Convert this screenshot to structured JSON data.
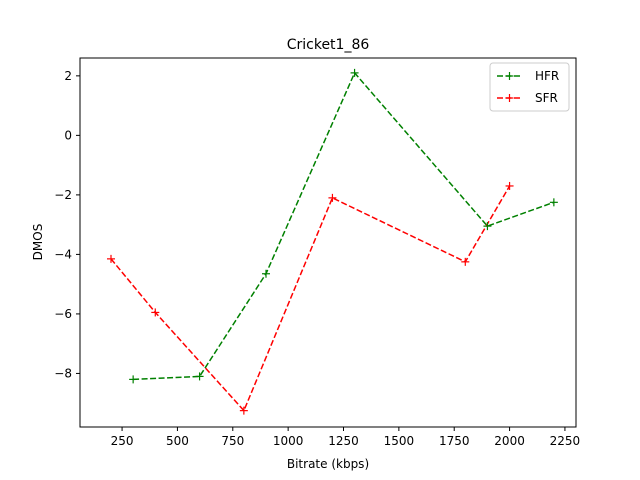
{
  "chart_data": {
    "type": "line",
    "title": "Cricket1_86",
    "xlabel": "Bitrate (kbps)",
    "ylabel": "DMOS",
    "xlim": [
      60,
      2300
    ],
    "ylim": [
      -9.8,
      2.6
    ],
    "xticks": [
      250,
      500,
      750,
      1000,
      1250,
      1500,
      1750,
      2000,
      2250
    ],
    "yticks": [
      -8,
      -6,
      -4,
      -2,
      0,
      2
    ],
    "grid": false,
    "legend_position": "top-right",
    "series": [
      {
        "name": "HFR",
        "color": "#008000",
        "linestyle": "dashed",
        "marker": "+",
        "x": [
          300,
          600,
          900,
          1300,
          1900,
          2200
        ],
        "y": [
          -8.2,
          -8.1,
          -4.65,
          2.1,
          -3.05,
          -2.25
        ]
      },
      {
        "name": "SFR",
        "color": "#ff0000",
        "linestyle": "dashed",
        "marker": "+",
        "x": [
          200,
          400,
          800,
          1200,
          1800,
          2000
        ],
        "y": [
          -4.15,
          -5.95,
          -9.25,
          -2.1,
          -4.25,
          -1.7
        ]
      }
    ]
  }
}
